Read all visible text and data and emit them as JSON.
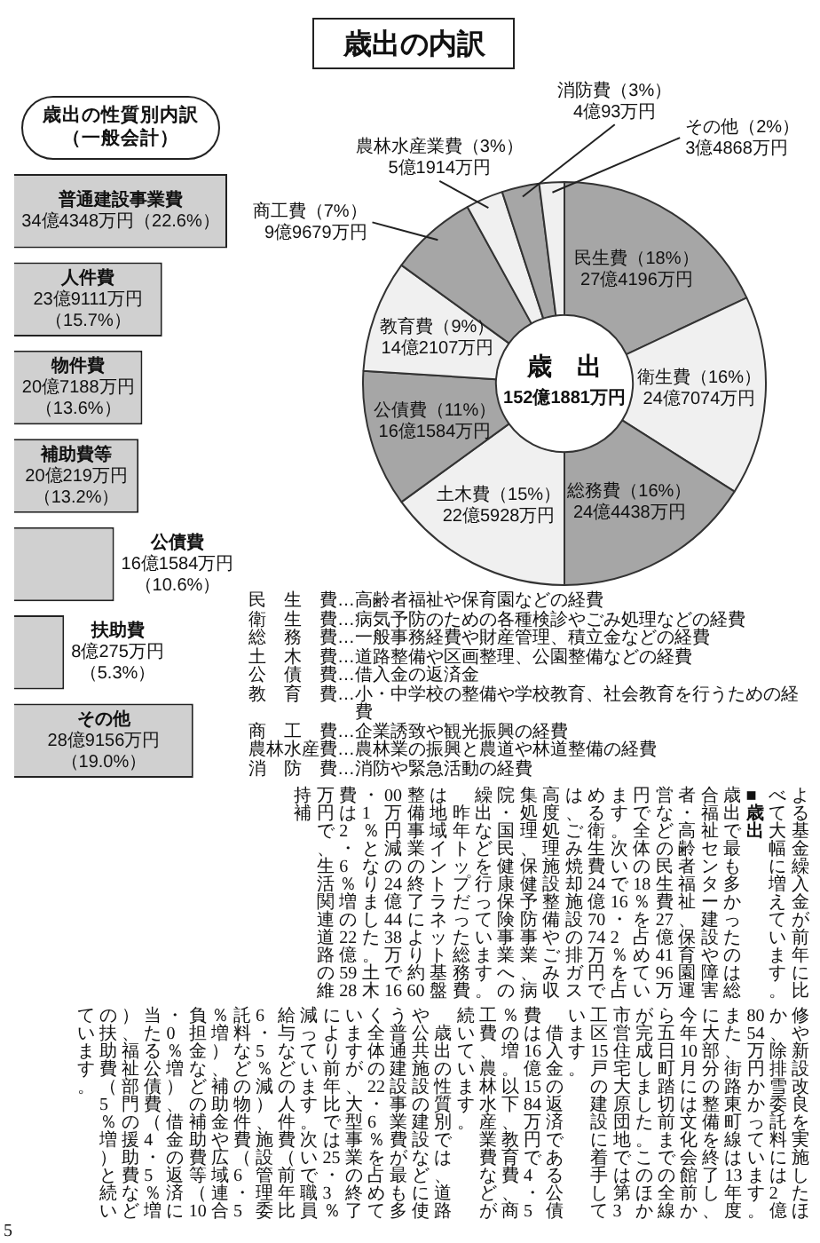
{
  "chart_data": [
    {
      "type": "donut",
      "title": "歳出の内訳",
      "categories": [
        "民生費",
        "衛生費",
        "総務費",
        "土木費",
        "公債費",
        "教育費",
        "商工費",
        "農林水産業費",
        "消防費",
        "その他"
      ],
      "values": [
        18,
        16,
        16,
        15,
        11,
        9,
        7,
        3,
        3,
        2
      ],
      "colors": [
        "#a6a6a6",
        "#f0f0f0",
        "#a6a6a6",
        "#f0f0f0",
        "#a6a6a6",
        "#f0f0f0",
        "#a6a6a6",
        "#f0f0f0",
        "#a6a6a6",
        "#f0f0f0"
      ],
      "value_labels": [
        "（18%）27億4196万円",
        "（16%）24億7074万円",
        "（16%）24億4438万円",
        "（15%）22億5928万円",
        "（11%）16億1584万円",
        "（9%）14億2107万円",
        "（7%）9億9679万円",
        "（3%）5億1914万円",
        "（3%）4億93万円",
        "（2%）3億4868万円"
      ],
      "annotations": [
        "歳　出",
        "152億1881万円",
        "民　生　費…高齢者福祉や保育園などの経費",
        "衛　生　費…病気予防のための各種検診やごみ処理などの経費",
        "総　務　費…一般事務経費や財産管理、積立金などの経費",
        "土　木　費…道路整備や区画整理、公園整備などの経費",
        "公　債　費…借入金の返済金",
        "教　育　費…小・中学校の整備や学校教育、社会教育を行うための経費",
        "商　工　費…企業誘致や観光振興の経費",
        "農林水産費…農林業の振興と農道や林道整備の経費",
        "消　防　費…消防や緊急活動の経費"
      ]
    },
    {
      "type": "bar",
      "orientation": "horizontal",
      "title": "歳出の性質別内訳",
      "subtitle": "（一般会計）",
      "categories": [
        "普通建設事業費",
        "人件費",
        "物件費",
        "補助費等",
        "公債費",
        "扶助費",
        "その他"
      ],
      "values": [
        22.6,
        15.7,
        13.6,
        13.2,
        10.6,
        5.3,
        19.0
      ],
      "color": "#d0d0d0",
      "value_labels": [
        "34億4348万円（22.6%）",
        "23億9111万円（15.7%）",
        "20億7188万円（13.6%）",
        "20億219万円（13.2%）",
        "16億1584万円（10.6%）",
        "8億275万円（5.3%）",
        "28億9156万円（19.0%）"
      ],
      "tick_labels": false
    },
    {
      "type": "other",
      "annotations": [
        "よる基金繰入金が前年に比べて大幅に増えています。",
        "■歳出",
        "歳出で最も多かったのは総合福祉センター建設や障害者・高齢者福祉、保育園運営などの民生費27億4196万円で全体の18％を占めています。次いで16・2％を占める衛生費24億7074万円では、ごみ焼却施設の排ガス高度処理施設整備やごみ収集処理、保健予防事業、病院・国民健康保険事業への繰出などを行っています。",
        "　昨年トップだった総務費は地域イントラネット基盤整備事業の終了により約6000万円減の24億4438万で16・1％となりました。土木費は2・6％増の22億5928万円で、生活関連道路の維持補"
      ]
    },
    {
      "type": "other",
      "annotations": [
        "修や新設改良を実施したほか、除排雪委託料には2億8054万円かかっています。また、街路東町線は13年度に大部分の整備を終了し、今年10月には文化会館前から五日町踏切前までの全線が完成しました。このほか市営住宅大原団地では第3工区15戸の建設に着手しています。",
        "　借入金の返済である公債費は16億1584万円で4・5％の増。以下、教育費、商工費、農林水産業費などが続いています。",
        "　歳出の性質別では、道路や公共施設の建設などに使う普通建設事業費が最も多く全体の22・6％を占めていますが、大型事業の終了により前年比では25・3％減っています。次いで職員給与などの人件費（前年比6・5％減）、施設管理委託料などの物件費（6・5％増）、補助金や広域連合負担金などの補助費等（10・0％増）、借金の返済に当たる公債費（4・5％増）、福祉部門の援助費などの扶助費（5％増）と続いています。"
      ]
    },
    {
      "type": "other",
      "annotations": [
        "5"
      ]
    }
  ]
}
